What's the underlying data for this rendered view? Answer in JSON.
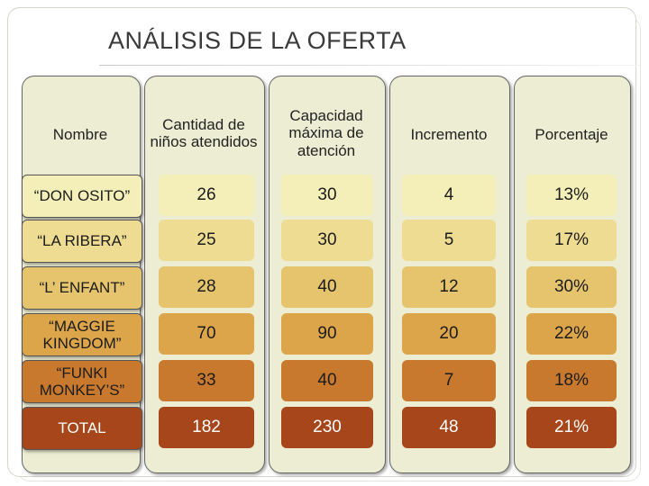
{
  "title": "ANÁLISIS DE LA OFERTA",
  "headers": {
    "nombre": "Nombre",
    "cantidad": "Cantidad de niños atendidos",
    "capacidad": "Capacidad máxima de atención",
    "incremento": "Incremento",
    "porcentaje": "Porcentaje"
  },
  "rows": [
    {
      "nombre": "“DON OSITO”",
      "cantidad": "26",
      "capacidad": "30",
      "incremento": "4",
      "porcentaje": "13%"
    },
    {
      "nombre": "“LA RIBERA”",
      "cantidad": "25",
      "capacidad": "30",
      "incremento": "5",
      "porcentaje": "17%"
    },
    {
      "nombre": "“L’ ENFANT”",
      "cantidad": "28",
      "capacidad": "40",
      "incremento": "12",
      "porcentaje": "30%"
    },
    {
      "nombre": "“MAGGIE KINGDOM”",
      "cantidad": "70",
      "capacidad": "90",
      "incremento": "20",
      "porcentaje": "22%"
    },
    {
      "nombre": "“FUNKI MONKEY’S”",
      "cantidad": "33",
      "capacidad": "40",
      "incremento": "7",
      "porcentaje": "18%"
    },
    {
      "nombre": "TOTAL",
      "cantidad": "182",
      "capacidad": "230",
      "incremento": "48",
      "porcentaje": "21%"
    }
  ],
  "colors": {
    "column_background": "#ecedd3",
    "row_gradient": [
      "#f4efb9",
      "#eedc92",
      "#e5c46d",
      "#dca54a",
      "#c8792e",
      "#a6461a"
    ]
  }
}
